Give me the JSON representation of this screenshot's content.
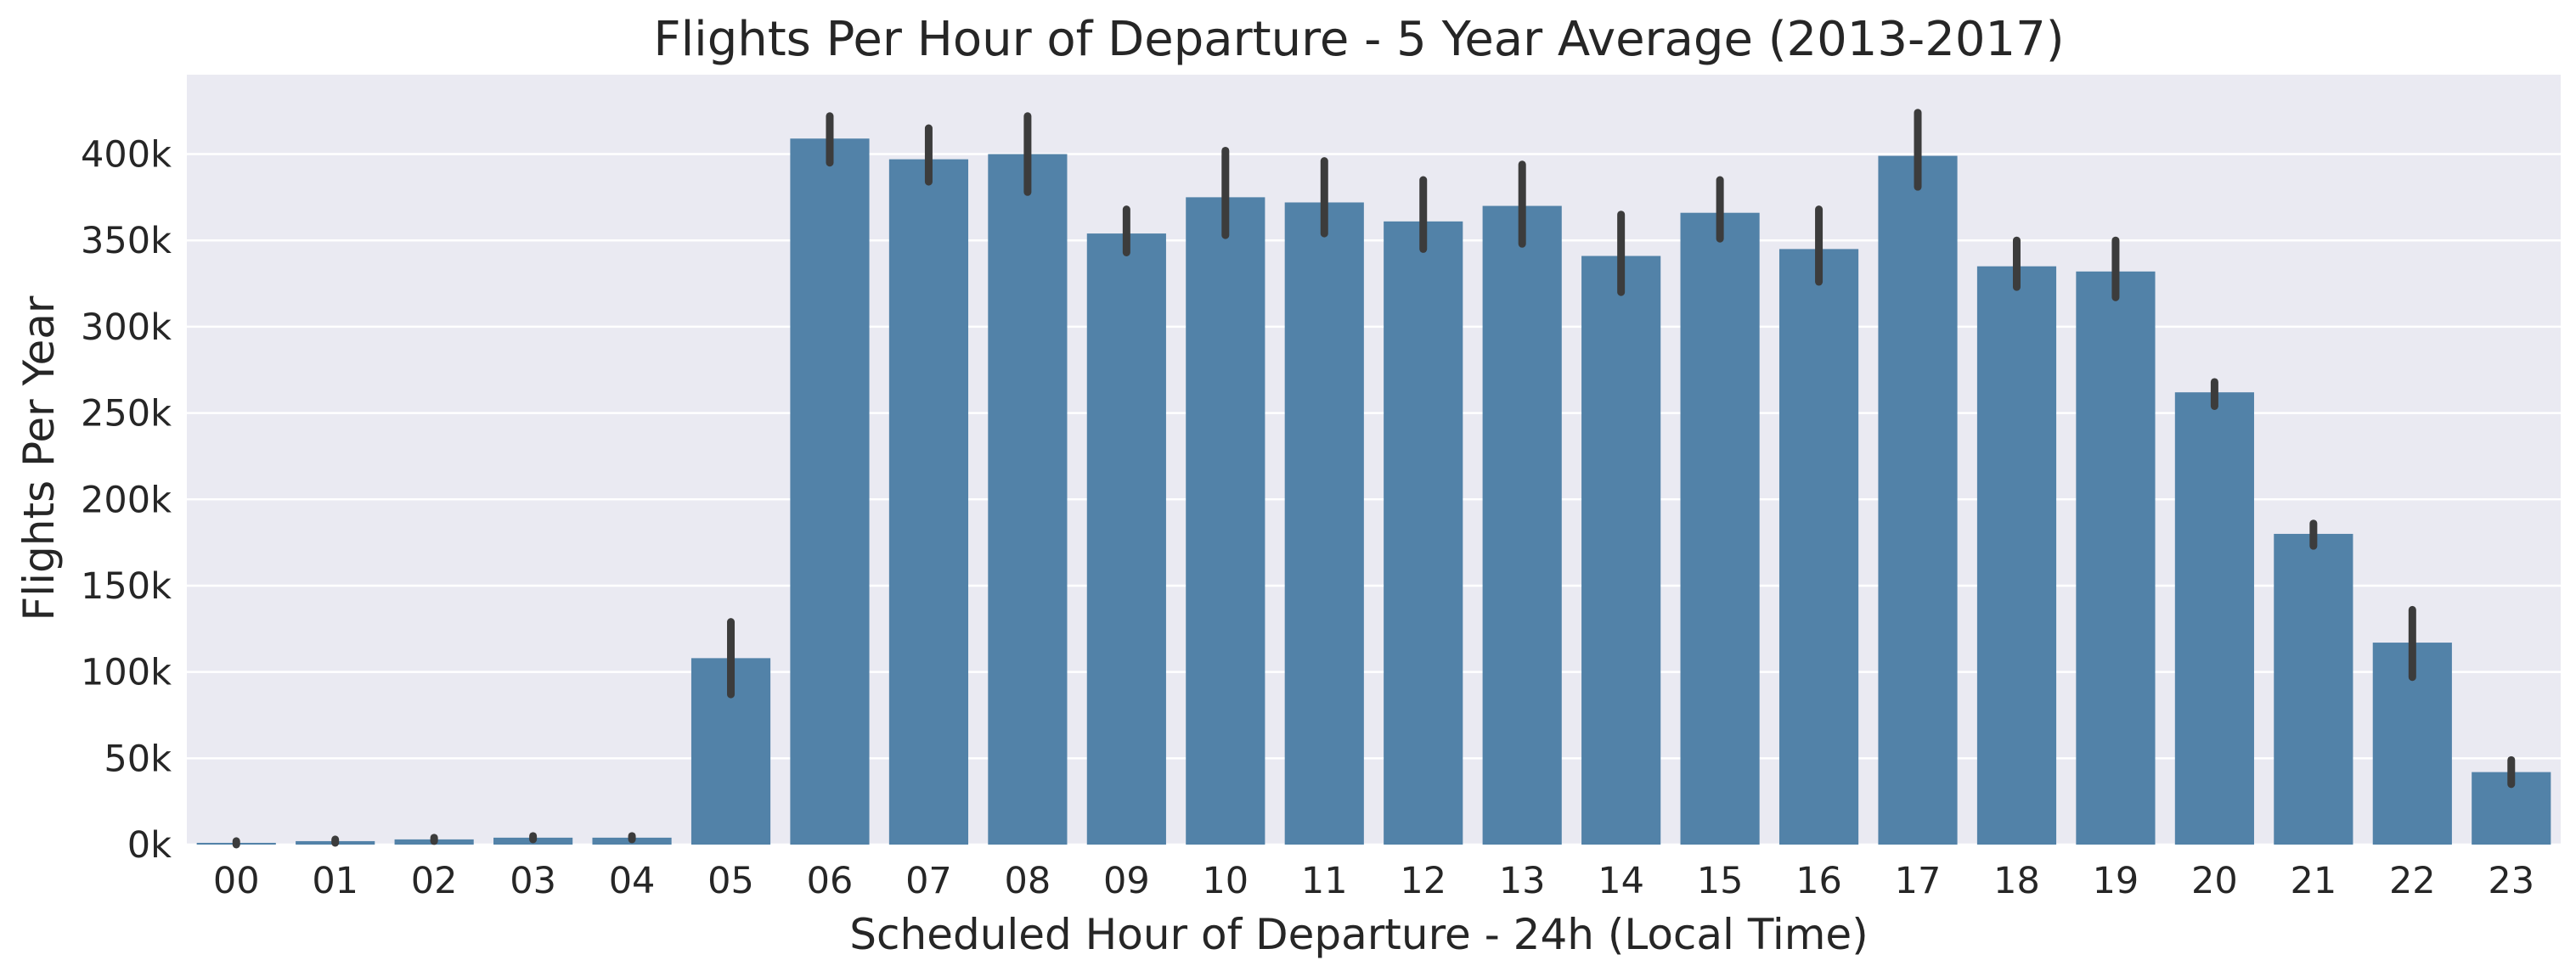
{
  "chart_data": {
    "type": "bar",
    "title": "Flights Per Hour of Departure - 5 Year Average (2013-2017)",
    "xlabel": "Scheduled Hour of Departure - 24h (Local Time)",
    "ylabel": "Flights Per Year",
    "categories": [
      "00",
      "01",
      "02",
      "03",
      "04",
      "05",
      "06",
      "07",
      "08",
      "09",
      "10",
      "11",
      "12",
      "13",
      "14",
      "15",
      "16",
      "17",
      "18",
      "19",
      "20",
      "21",
      "22",
      "23"
    ],
    "values": [
      1000,
      2000,
      3000,
      4000,
      4000,
      108000,
      409000,
      397000,
      400000,
      354000,
      375000,
      372000,
      361000,
      370000,
      341000,
      366000,
      345000,
      399000,
      335000,
      332000,
      262000,
      180000,
      117000,
      42000
    ],
    "error_bars": [
      [
        0,
        2000
      ],
      [
        1000,
        3000
      ],
      [
        2000,
        4000
      ],
      [
        3000,
        5000
      ],
      [
        3000,
        5000
      ],
      [
        87000,
        129000
      ],
      [
        395000,
        422000
      ],
      [
        384000,
        415000
      ],
      [
        378000,
        422000
      ],
      [
        343000,
        368000
      ],
      [
        353000,
        402000
      ],
      [
        354000,
        396000
      ],
      [
        345000,
        385000
      ],
      [
        348000,
        394000
      ],
      [
        320000,
        365000
      ],
      [
        351000,
        385000
      ],
      [
        326000,
        368000
      ],
      [
        381000,
        424000
      ],
      [
        323000,
        350000
      ],
      [
        317000,
        350000
      ],
      [
        254000,
        268000
      ],
      [
        173000,
        186000
      ],
      [
        97000,
        136000
      ],
      [
        35000,
        49000
      ]
    ],
    "yticks": [
      0,
      50000,
      100000,
      150000,
      200000,
      250000,
      300000,
      350000,
      400000
    ],
    "ytick_labels": [
      "0k",
      "50k",
      "100k",
      "150k",
      "200k",
      "250k",
      "300k",
      "350k",
      "400k"
    ],
    "ylim": [
      0,
      446000
    ],
    "grid": true,
    "colors": {
      "bar": "#5282a8",
      "error_bar": "#3c3c3c",
      "plot_background": "#eaeaf2",
      "grid": "#ffffff"
    }
  }
}
